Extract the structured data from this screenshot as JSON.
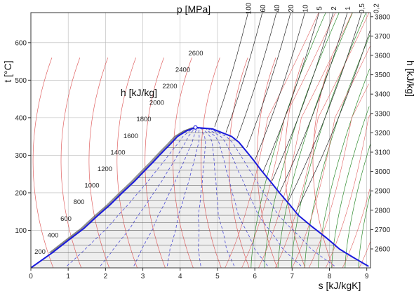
{
  "chart_data": {
    "type": "line",
    "title": "",
    "xlabel": "s [kJ/kgK]",
    "ylabel": "t [°C]",
    "right_label": "h [kJ/kg]",
    "top_label": "p [MPa]",
    "inner_label": "h [kJ/kg]",
    "xlim": [
      0,
      9.1
    ],
    "ylim": [
      0,
      680
    ],
    "grid": true,
    "x_ticks": [
      "0",
      "1",
      "2",
      "3",
      "4",
      "5",
      "6",
      "7",
      "8",
      "9"
    ],
    "y_ticks": [
      "100",
      "200",
      "300",
      "400",
      "500",
      "600"
    ],
    "pressure_labels": [
      "100",
      "60",
      "40",
      "20",
      "10",
      "5",
      "2",
      "1",
      "0,5",
      "0,2"
    ],
    "right_h_ticks": [
      "2600",
      "2700",
      "2800",
      "2900",
      "3000",
      "3100",
      "3200",
      "3300",
      "3400",
      "3500",
      "3600",
      "3700",
      "3800"
    ],
    "inner_h_labels": [
      "200",
      "400",
      "600",
      "800",
      "1000",
      "1200",
      "1400",
      "1600",
      "1800",
      "2000",
      "2200",
      "2400",
      "2600"
    ],
    "colors": {
      "saturation_dome": "#1a1adc",
      "isobar": "#2a2a2a",
      "isochore": "#2e8b2e",
      "isenthalpic": "#e06262",
      "quality": "#4a4ad8",
      "grid": "#b8b8b8",
      "dome_fill": "#eeeeee"
    },
    "series": [
      {
        "name": "saturated liquid",
        "x": [
          0,
          0.57,
          1.02,
          1.42,
          1.8,
          2.12,
          2.45,
          2.77,
          3.06,
          3.26,
          3.4,
          3.59,
          3.74,
          3.93,
          4.17,
          4.41
        ],
        "y": [
          0,
          40,
          75,
          105,
          140,
          168,
          200,
          230,
          260,
          280,
          295,
          315,
          330,
          350,
          365,
          374
        ]
      },
      {
        "name": "saturated vapor",
        "x": [
          4.41,
          4.87,
          5.38,
          5.57,
          5.78,
          5.98,
          6.17,
          6.42,
          6.66,
          6.92,
          7.17,
          7.53,
          7.92,
          8.27,
          8.6,
          9.05
        ],
        "y": [
          374,
          370,
          350,
          335,
          310,
          285,
          260,
          230,
          200,
          170,
          140,
          110,
          80,
          50,
          30,
          4
        ]
      }
    ],
    "critical_point": {
      "x": 4.41,
      "y": 374
    }
  }
}
